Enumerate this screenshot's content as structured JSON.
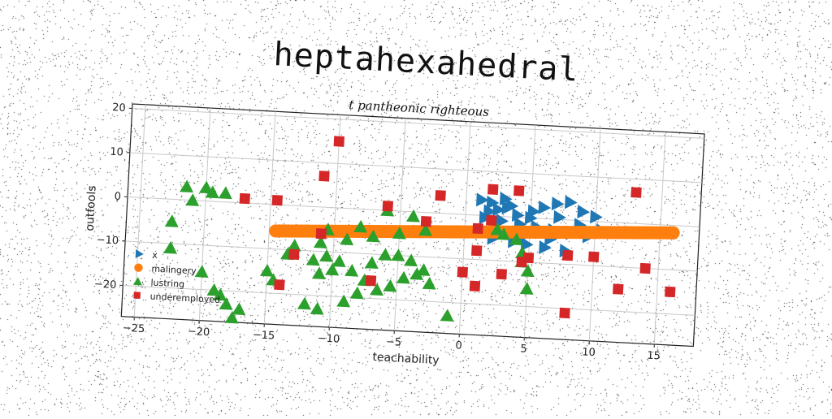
{
  "title": "heptahexahedral",
  "chart_data": {
    "type": "scatter",
    "subtitle": "t pantheonic righteous",
    "xlabel": "teachability",
    "ylabel": "outfools",
    "xlim": [
      -26,
      18
    ],
    "ylim": [
      -27,
      21
    ],
    "xticks": [
      -25,
      -20,
      -15,
      -10,
      -5,
      0,
      5,
      10,
      15
    ],
    "yticks": [
      -20,
      -10,
      0,
      10,
      20
    ],
    "grid": true,
    "legend_position": "lower-left",
    "series": [
      {
        "name": "x",
        "marker": "triangle-right",
        "color": "#1f77b4",
        "x": [
          1.2,
          2.0,
          3.0,
          3.5,
          2.5,
          4.0,
          5.0,
          6.0,
          7.0,
          8.0,
          9.0,
          10.0,
          1.5,
          2.8,
          4.2,
          5.5,
          6.8,
          8.2,
          9.5,
          2.2,
          3.8,
          4.8,
          6.2,
          7.8,
          1.8,
          3.2,
          5.2,
          7.2,
          8.8,
          10.5,
          2.6,
          4.6,
          6.6
        ],
        "y": [
          3.5,
          3.0,
          4.0,
          2.5,
          1.5,
          0.5,
          0.0,
          2.5,
          3.5,
          4.0,
          2.0,
          1.0,
          -0.5,
          -1.0,
          -1.5,
          -2.0,
          -2.5,
          -3.0,
          -3.5,
          -5.0,
          -5.5,
          -6.0,
          -6.5,
          -7.0,
          1.0,
          2.0,
          1.5,
          0.5,
          -1.0,
          -2.0,
          -3.5,
          -4.0,
          -4.5
        ]
      },
      {
        "name": "malingery",
        "marker": "circle",
        "color": "#ff7f0e",
        "x_start": -14.5,
        "x_end": 16,
        "slope": 0.14,
        "intercept": -3.9,
        "count": 120
      },
      {
        "name": "lustring",
        "marker": "triangle-up",
        "color": "#2ca02c",
        "x": [
          -20,
          -21.5,
          -19.5,
          -18.5,
          -22.5,
          -22.5,
          -18.5,
          -17.5,
          -15,
          -14.5,
          -13.5,
          -11.5,
          -10.5,
          -9.5,
          -11,
          -10,
          -8.5,
          -7.5,
          -7,
          -6,
          -5,
          -4,
          -3,
          -2.5,
          -12,
          -11,
          -9,
          -8,
          -6.5,
          -5.5,
          -4.5,
          -3.5,
          -10.5,
          -8,
          -6,
          -4,
          -13,
          -11,
          -9,
          -7,
          -5,
          -3,
          2.5,
          3,
          4,
          4.5,
          4.5,
          5,
          5,
          -1,
          -17,
          -18,
          -19,
          -20,
          -21
        ],
        "y": [
          3,
          3,
          2,
          2,
          -5,
          -11,
          -21,
          -26,
          -15,
          -17,
          -11,
          -12,
          -11,
          -12,
          -15,
          -14,
          -14,
          -16,
          -12,
          -10,
          -10,
          -11,
          -13,
          -16,
          -22,
          -23,
          -21,
          -19,
          -18,
          -17,
          -15,
          -14,
          -5,
          -4,
          0,
          -1,
          -9,
          -8,
          -7,
          -6,
          -5,
          -4,
          -3,
          -4,
          -5,
          -8,
          -10,
          -12,
          -16,
          -23,
          -24,
          -23,
          -20,
          -16,
          0
        ]
      },
      {
        "name": "underemployed",
        "marker": "square",
        "color": "#d62728",
        "x": [
          -10,
          -11,
          -14.5,
          -17,
          -11,
          -13,
          -6,
          -2,
          2,
          4,
          5,
          8,
          10,
          13,
          1,
          3,
          1,
          -14,
          -7,
          2,
          4.5,
          8,
          12,
          14,
          16,
          -3,
          1,
          0
        ],
        "y": [
          15,
          7,
          1,
          1,
          -6,
          -11,
          1,
          4,
          6,
          6,
          -9,
          -8,
          -8,
          7,
          -8,
          -13,
          -16,
          -18,
          -16,
          -1,
          -10,
          -21,
          -15,
          -10,
          -15,
          -2,
          -3,
          -13
        ]
      }
    ]
  }
}
